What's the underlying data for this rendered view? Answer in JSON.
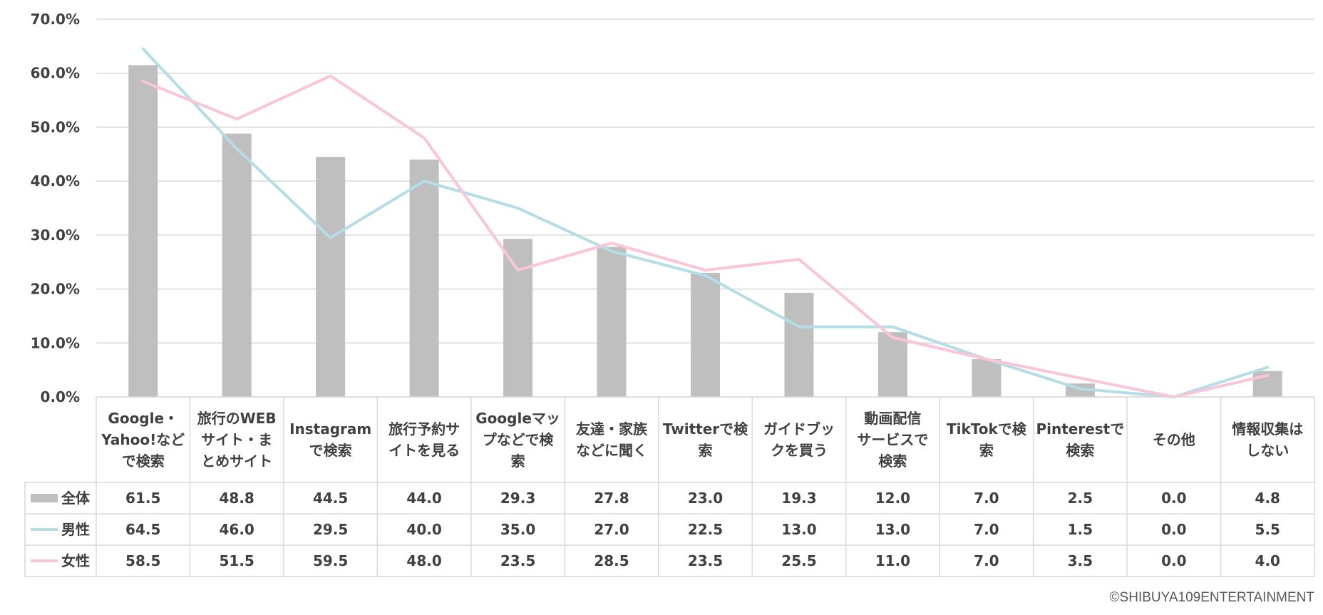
{
  "chart_data": {
    "type": "bar",
    "categories": [
      [
        "Google・",
        "Yahoo!など",
        "で検索"
      ],
      [
        "旅行のWEB",
        "サイト・ま",
        "とめサイト"
      ],
      [
        "Instagram",
        "で検索"
      ],
      [
        "旅行予約サ",
        "イトを見る"
      ],
      [
        "Googleマッ",
        "プなどで検",
        "索"
      ],
      [
        "友達・家族",
        "などに聞く"
      ],
      [
        "Twitterで検",
        "索"
      ],
      [
        "ガイドブッ",
        "クを買う"
      ],
      [
        "動画配信",
        "サービスで",
        "検索"
      ],
      [
        "TikTokで検",
        "索"
      ],
      [
        "Pinterestで",
        "検索"
      ],
      [
        "その他"
      ],
      [
        "情報収集は",
        "しない"
      ]
    ],
    "series": [
      {
        "name": "全体",
        "kind": "bar",
        "color": "#bfbfbf",
        "values": [
          61.5,
          48.8,
          44.5,
          44.0,
          29.3,
          27.8,
          23.0,
          19.3,
          12.0,
          7.0,
          2.5,
          0.0,
          4.8
        ],
        "labels": [
          "61.5",
          "48.8",
          "44.5",
          "44.0",
          "29.3",
          "27.8",
          "23.0",
          "19.3",
          "12.0",
          "7.0",
          "2.5",
          "0.0",
          "4.8"
        ]
      },
      {
        "name": "男性",
        "kind": "line",
        "color": "#b4dde6",
        "values": [
          64.5,
          46.0,
          29.5,
          40.0,
          35.0,
          27.0,
          22.5,
          13.0,
          13.0,
          7.0,
          1.5,
          0.0,
          5.5
        ],
        "labels": [
          "64.5",
          "46.0",
          "29.5",
          "40.0",
          "35.0",
          "27.0",
          "22.5",
          "13.0",
          "13.0",
          "7.0",
          "1.5",
          "0.0",
          "5.5"
        ]
      },
      {
        "name": "女性",
        "kind": "line",
        "color": "#fbc5d9",
        "values": [
          58.5,
          51.5,
          59.5,
          48.0,
          23.5,
          28.5,
          23.5,
          25.5,
          11.0,
          7.0,
          3.5,
          0.0,
          4.0
        ],
        "labels": [
          "58.5",
          "51.5",
          "59.5",
          "48.0",
          "23.5",
          "28.5",
          "23.5",
          "25.5",
          "11.0",
          "7.0",
          "3.5",
          "0.0",
          "4.0"
        ]
      }
    ],
    "yticks": [
      "0.0%",
      "10.0%",
      "20.0%",
      "30.0%",
      "40.0%",
      "50.0%",
      "60.0%",
      "70.0%"
    ],
    "ylim": [
      0,
      70
    ],
    "grid": true,
    "legend": "data-table"
  },
  "credit": "©SHIBUYA109ENTERTAINMENT"
}
